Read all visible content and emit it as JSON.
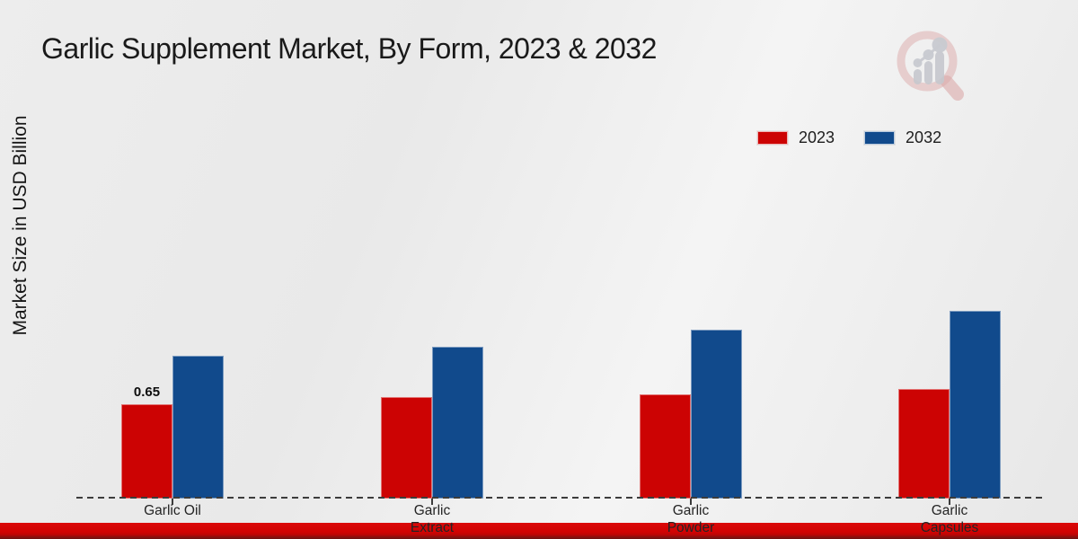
{
  "chart_data": {
    "type": "bar",
    "title": "Garlic Supplement Market, By Form, 2023 & 2032",
    "ylabel": "Market Size in USD Billion",
    "xlabel": "",
    "categories": [
      "Garlic Oil",
      "Garlic Extract",
      "Garlic Powder",
      "Garlic Capsules"
    ],
    "x_tick_label_lines": [
      [
        "Garlic Oil"
      ],
      [
        "Garlic",
        "Extract"
      ],
      [
        "Garlic",
        "Powder"
      ],
      [
        "Garlic",
        "Capsules"
      ]
    ],
    "series": [
      {
        "name": "2023",
        "color": "#cc0303",
        "values": [
          0.65,
          0.7,
          0.72,
          0.76
        ]
      },
      {
        "name": "2032",
        "color": "#114a8c",
        "values": [
          0.99,
          1.05,
          1.17,
          1.3
        ]
      }
    ],
    "annotations": [
      {
        "series": "2023",
        "category": "Garlic Oil",
        "text": "0.65"
      }
    ],
    "legend_position": "top-right",
    "grid": false,
    "x_axis_style": "dashed",
    "y_axis_ticks_visible": false,
    "ylim": [
      0,
      1.4
    ]
  },
  "colors": {
    "series_2023": "#cc0303",
    "series_2032": "#114a8c",
    "footer_band": "#d10303",
    "footer_band_dark": "#7d1210",
    "background": "#ececec",
    "axis_line": "#3c3c3c"
  },
  "watermark": {
    "icon": "market-research-future-logo"
  }
}
